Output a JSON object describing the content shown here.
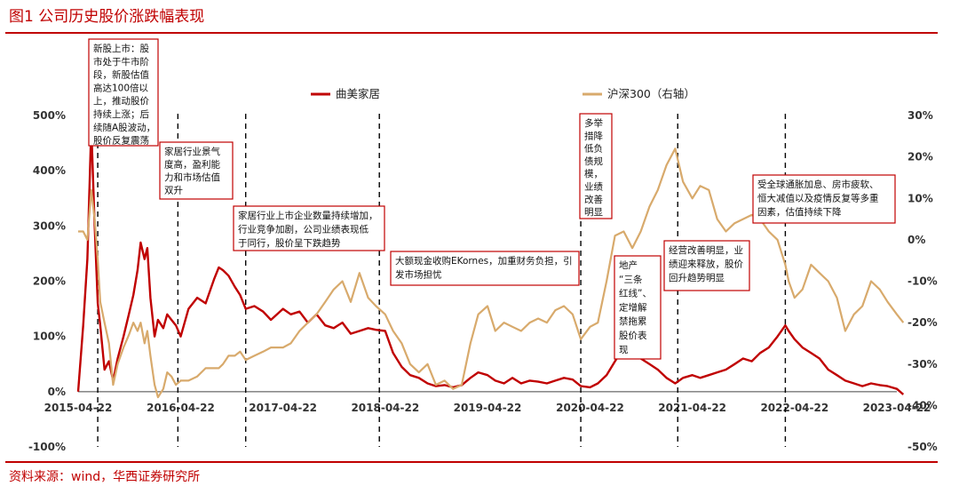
{
  "header": {
    "title": "图1   公司历史股价涨跌幅表现"
  },
  "footer": {
    "source": "资料来源：wind，华西证券研究所"
  },
  "chart_data": {
    "type": "line",
    "x_ticks": [
      "2015-04-22",
      "2016-04-22",
      "2017-04-22",
      "2018-04-22",
      "2019-04-22",
      "2020-04-22",
      "2021-04-22",
      "2022-04-22",
      "2023-04-22"
    ],
    "y_left_ticks": [
      "500%",
      "400%",
      "300%",
      "200%",
      "100%",
      "0%",
      "-100%"
    ],
    "y_right_ticks": [
      "30%",
      "20%",
      "10%",
      "0%",
      "-10%",
      "-20%",
      "-30%",
      "-40%",
      "-50%"
    ],
    "ylim_left": [
      -100,
      500
    ],
    "ylim_right": [
      -50,
      30
    ],
    "colors": {
      "primary": "#c00000",
      "secondary": "#d8aa6c",
      "vline": "#000000"
    },
    "series": [
      {
        "name": "曲美家居",
        "axis": "left",
        "points": [
          [
            "2015-04-22",
            0
          ],
          [
            "2015-05-10",
            120
          ],
          [
            "2015-05-25",
            240
          ],
          [
            "2015-06-08",
            480
          ],
          [
            "2015-06-20",
            300
          ],
          [
            "2015-07-01",
            160
          ],
          [
            "2015-07-10",
            120
          ],
          [
            "2015-07-25",
            40
          ],
          [
            "2015-08-10",
            55
          ],
          [
            "2015-08-25",
            20
          ],
          [
            "2015-09-10",
            60
          ],
          [
            "2015-10-01",
            100
          ],
          [
            "2015-10-20",
            140
          ],
          [
            "2015-11-05",
            175
          ],
          [
            "2015-11-20",
            220
          ],
          [
            "2015-12-01",
            270
          ],
          [
            "2015-12-15",
            240
          ],
          [
            "2015-12-25",
            260
          ],
          [
            "2016-01-05",
            170
          ],
          [
            "2016-01-20",
            100
          ],
          [
            "2016-02-01",
            130
          ],
          [
            "2016-02-20",
            115
          ],
          [
            "2016-03-05",
            140
          ],
          [
            "2016-03-20",
            130
          ],
          [
            "2016-04-05",
            120
          ],
          [
            "2016-04-22",
            100
          ],
          [
            "2016-05-20",
            150
          ],
          [
            "2016-06-20",
            170
          ],
          [
            "2016-07-20",
            160
          ],
          [
            "2016-08-20",
            205
          ],
          [
            "2016-09-05",
            225
          ],
          [
            "2016-09-20",
            220
          ],
          [
            "2016-10-10",
            210
          ],
          [
            "2016-11-01",
            190
          ],
          [
            "2016-11-20",
            175
          ],
          [
            "2016-12-10",
            150
          ],
          [
            "2017-01-10",
            155
          ],
          [
            "2017-02-10",
            145
          ],
          [
            "2017-03-10",
            130
          ],
          [
            "2017-04-22",
            150
          ],
          [
            "2017-05-20",
            140
          ],
          [
            "2017-06-20",
            145
          ],
          [
            "2017-07-20",
            125
          ],
          [
            "2017-08-20",
            140
          ],
          [
            "2017-09-20",
            120
          ],
          [
            "2017-10-20",
            115
          ],
          [
            "2017-11-20",
            125
          ],
          [
            "2017-12-20",
            105
          ],
          [
            "2018-01-20",
            110
          ],
          [
            "2018-02-20",
            115
          ],
          [
            "2018-03-20",
            112
          ],
          [
            "2018-04-22",
            110
          ],
          [
            "2018-05-20",
            70
          ],
          [
            "2018-06-20",
            45
          ],
          [
            "2018-07-20",
            30
          ],
          [
            "2018-08-20",
            25
          ],
          [
            "2018-09-20",
            15
          ],
          [
            "2018-10-20",
            10
          ],
          [
            "2018-11-20",
            12
          ],
          [
            "2018-12-20",
            8
          ],
          [
            "2019-01-20",
            12
          ],
          [
            "2019-02-20",
            25
          ],
          [
            "2019-03-20",
            35
          ],
          [
            "2019-04-22",
            30
          ],
          [
            "2019-05-20",
            20
          ],
          [
            "2019-06-20",
            15
          ],
          [
            "2019-07-20",
            25
          ],
          [
            "2019-08-20",
            15
          ],
          [
            "2019-09-20",
            20
          ],
          [
            "2019-10-20",
            18
          ],
          [
            "2019-11-20",
            15
          ],
          [
            "2019-12-20",
            20
          ],
          [
            "2020-01-20",
            25
          ],
          [
            "2020-02-20",
            22
          ],
          [
            "2020-03-20",
            10
          ],
          [
            "2020-04-22",
            8
          ],
          [
            "2020-05-20",
            15
          ],
          [
            "2020-06-20",
            30
          ],
          [
            "2020-07-20",
            55
          ],
          [
            "2020-08-20",
            80
          ],
          [
            "2020-09-20",
            70
          ],
          [
            "2020-10-20",
            60
          ],
          [
            "2020-11-20",
            50
          ],
          [
            "2020-12-20",
            40
          ],
          [
            "2021-01-20",
            25
          ],
          [
            "2021-02-20",
            15
          ],
          [
            "2021-03-20",
            25
          ],
          [
            "2021-04-22",
            30
          ],
          [
            "2021-05-20",
            25
          ],
          [
            "2021-06-20",
            30
          ],
          [
            "2021-07-20",
            35
          ],
          [
            "2021-08-20",
            40
          ],
          [
            "2021-09-20",
            50
          ],
          [
            "2021-10-20",
            60
          ],
          [
            "2021-11-20",
            55
          ],
          [
            "2021-12-20",
            70
          ],
          [
            "2022-01-20",
            80
          ],
          [
            "2022-02-20",
            100
          ],
          [
            "2022-03-20",
            120
          ],
          [
            "2022-04-01",
            110
          ],
          [
            "2022-04-22",
            95
          ],
          [
            "2022-05-20",
            80
          ],
          [
            "2022-06-20",
            70
          ],
          [
            "2022-07-20",
            60
          ],
          [
            "2022-08-20",
            40
          ],
          [
            "2022-09-20",
            30
          ],
          [
            "2022-10-20",
            20
          ],
          [
            "2022-11-20",
            15
          ],
          [
            "2022-12-20",
            10
          ],
          [
            "2023-01-20",
            15
          ],
          [
            "2023-02-20",
            12
          ],
          [
            "2023-03-20",
            10
          ],
          [
            "2023-04-22",
            5
          ],
          [
            "2023-05-15",
            -5
          ]
        ]
      },
      {
        "name": "沪深300（右轴）",
        "axis": "right",
        "points": [
          [
            "2015-04-22",
            2
          ],
          [
            "2015-05-10",
            2
          ],
          [
            "2015-05-25",
            0
          ],
          [
            "2015-06-08",
            12
          ],
          [
            "2015-06-20",
            5
          ],
          [
            "2015-07-01",
            -5
          ],
          [
            "2015-07-10",
            -15
          ],
          [
            "2015-07-25",
            -20
          ],
          [
            "2015-08-10",
            -25
          ],
          [
            "2015-08-25",
            -35
          ],
          [
            "2015-09-10",
            -30
          ],
          [
            "2015-10-01",
            -26
          ],
          [
            "2015-10-20",
            -23
          ],
          [
            "2015-11-05",
            -20
          ],
          [
            "2015-11-20",
            -22
          ],
          [
            "2015-12-01",
            -20
          ],
          [
            "2015-12-15",
            -25
          ],
          [
            "2015-12-25",
            -22
          ],
          [
            "2016-01-05",
            -28
          ],
          [
            "2016-01-20",
            -35
          ],
          [
            "2016-02-01",
            -38
          ],
          [
            "2016-02-20",
            -36
          ],
          [
            "2016-03-05",
            -32
          ],
          [
            "2016-03-20",
            -33
          ],
          [
            "2016-04-05",
            -35
          ],
          [
            "2016-04-22",
            -34
          ],
          [
            "2016-05-20",
            -34
          ],
          [
            "2016-06-20",
            -33
          ],
          [
            "2016-07-20",
            -31
          ],
          [
            "2016-08-20",
            -31
          ],
          [
            "2016-09-05",
            -31
          ],
          [
            "2016-09-20",
            -30
          ],
          [
            "2016-10-10",
            -28
          ],
          [
            "2016-11-01",
            -28
          ],
          [
            "2016-11-20",
            -27
          ],
          [
            "2016-12-10",
            -29
          ],
          [
            "2017-01-10",
            -28
          ],
          [
            "2017-02-10",
            -27
          ],
          [
            "2017-03-10",
            -26
          ],
          [
            "2017-04-22",
            -26
          ],
          [
            "2017-05-20",
            -25
          ],
          [
            "2017-06-20",
            -22
          ],
          [
            "2017-07-20",
            -20
          ],
          [
            "2017-08-20",
            -18
          ],
          [
            "2017-09-20",
            -15
          ],
          [
            "2017-10-20",
            -12
          ],
          [
            "2017-11-20",
            -10
          ],
          [
            "2017-12-20",
            -15
          ],
          [
            "2018-01-20",
            -8
          ],
          [
            "2018-02-20",
            -14
          ],
          [
            "2018-03-20",
            -16
          ],
          [
            "2018-04-22",
            -18
          ],
          [
            "2018-05-20",
            -22
          ],
          [
            "2018-06-20",
            -25
          ],
          [
            "2018-07-20",
            -30
          ],
          [
            "2018-08-20",
            -32
          ],
          [
            "2018-09-20",
            -30
          ],
          [
            "2018-10-20",
            -35
          ],
          [
            "2018-11-20",
            -34
          ],
          [
            "2018-12-20",
            -36
          ],
          [
            "2019-01-20",
            -35
          ],
          [
            "2019-02-20",
            -25
          ],
          [
            "2019-03-20",
            -18
          ],
          [
            "2019-04-22",
            -16
          ],
          [
            "2019-05-20",
            -22
          ],
          [
            "2019-06-20",
            -20
          ],
          [
            "2019-07-20",
            -21
          ],
          [
            "2019-08-20",
            -22
          ],
          [
            "2019-09-20",
            -20
          ],
          [
            "2019-10-20",
            -19
          ],
          [
            "2019-11-20",
            -20
          ],
          [
            "2019-12-20",
            -17
          ],
          [
            "2020-01-20",
            -16
          ],
          [
            "2020-02-20",
            -18
          ],
          [
            "2020-03-20",
            -24
          ],
          [
            "2020-04-22",
            -21
          ],
          [
            "2020-05-20",
            -20
          ],
          [
            "2020-06-20",
            -10
          ],
          [
            "2020-07-20",
            1
          ],
          [
            "2020-08-20",
            2
          ],
          [
            "2020-09-20",
            -2
          ],
          [
            "2020-10-20",
            2
          ],
          [
            "2020-11-20",
            8
          ],
          [
            "2020-12-20",
            12
          ],
          [
            "2021-01-20",
            18
          ],
          [
            "2021-02-20",
            22
          ],
          [
            "2021-03-20",
            14
          ],
          [
            "2021-04-22",
            10
          ],
          [
            "2021-05-20",
            13
          ],
          [
            "2021-06-20",
            12
          ],
          [
            "2021-07-20",
            5
          ],
          [
            "2021-08-20",
            2
          ],
          [
            "2021-09-20",
            4
          ],
          [
            "2021-10-20",
            5
          ],
          [
            "2021-11-20",
            6
          ],
          [
            "2021-12-20",
            5
          ],
          [
            "2022-01-20",
            2
          ],
          [
            "2022-02-20",
            0
          ],
          [
            "2022-03-20",
            -6
          ],
          [
            "2022-04-01",
            -10
          ],
          [
            "2022-04-22",
            -14
          ],
          [
            "2022-05-20",
            -12
          ],
          [
            "2022-06-20",
            -6
          ],
          [
            "2022-07-20",
            -8
          ],
          [
            "2022-08-20",
            -10
          ],
          [
            "2022-09-20",
            -14
          ],
          [
            "2022-10-20",
            -22
          ],
          [
            "2022-11-20",
            -18
          ],
          [
            "2022-12-20",
            -16
          ],
          [
            "2023-01-20",
            -10
          ],
          [
            "2023-02-20",
            -12
          ],
          [
            "2023-03-20",
            -15
          ],
          [
            "2023-04-22",
            -18
          ],
          [
            "2023-05-15",
            -20
          ]
        ]
      }
    ],
    "event_dates": [
      "2015-07-01",
      "2016-04-12",
      "2016-12-10",
      "2018-04-01",
      "2020-03-20",
      "2021-03-01",
      "2022-03-20"
    ],
    "annotations": [
      {
        "date": "2015-07-01",
        "lines": [
          "新股上市：股",
          "市处于牛市阶",
          "段，新股估值",
          "高达100倍以",
          "上，推动股价",
          "持续上涨；后",
          "续随A股波动，",
          "股价反复震荡"
        ]
      },
      {
        "date": "2016-04-12",
        "lines": [
          "家居行业景气",
          "度高，盈利能",
          "力和市场估值",
          "双升"
        ]
      },
      {
        "date": "2016-12-10",
        "lines": [
          "家居行业上市企业数量持续增加，",
          "行业竞争加剧，公司业绩表现低",
          "于同行，股价呈下跌趋势"
        ]
      },
      {
        "date": "2018-04-01",
        "lines": [
          "大额现金收购EKornes，加重财务负担，引",
          "发市场担忧"
        ]
      },
      {
        "date": "2020-03-20",
        "lines": [
          "多举",
          "措降",
          "低负",
          "债规",
          "模，",
          "业绩",
          "改善",
          "明显"
        ]
      },
      {
        "date": "2021-03-01",
        "lines": [
          "地产",
          "“三条",
          "红线”、",
          "定增解",
          "禁拖累",
          "股价表",
          "现"
        ]
      },
      {
        "date": "2021-06-01",
        "lines": [
          "经营改善明显，业",
          "绩迎来释放，股价",
          "回升趋势明显"
        ]
      },
      {
        "date": "2022-03-20",
        "lines": [
          "受全球通胀加息、房市疲软、",
          "恒大减值以及疫情反复等多重",
          "因素，估值持续下降"
        ]
      }
    ]
  }
}
